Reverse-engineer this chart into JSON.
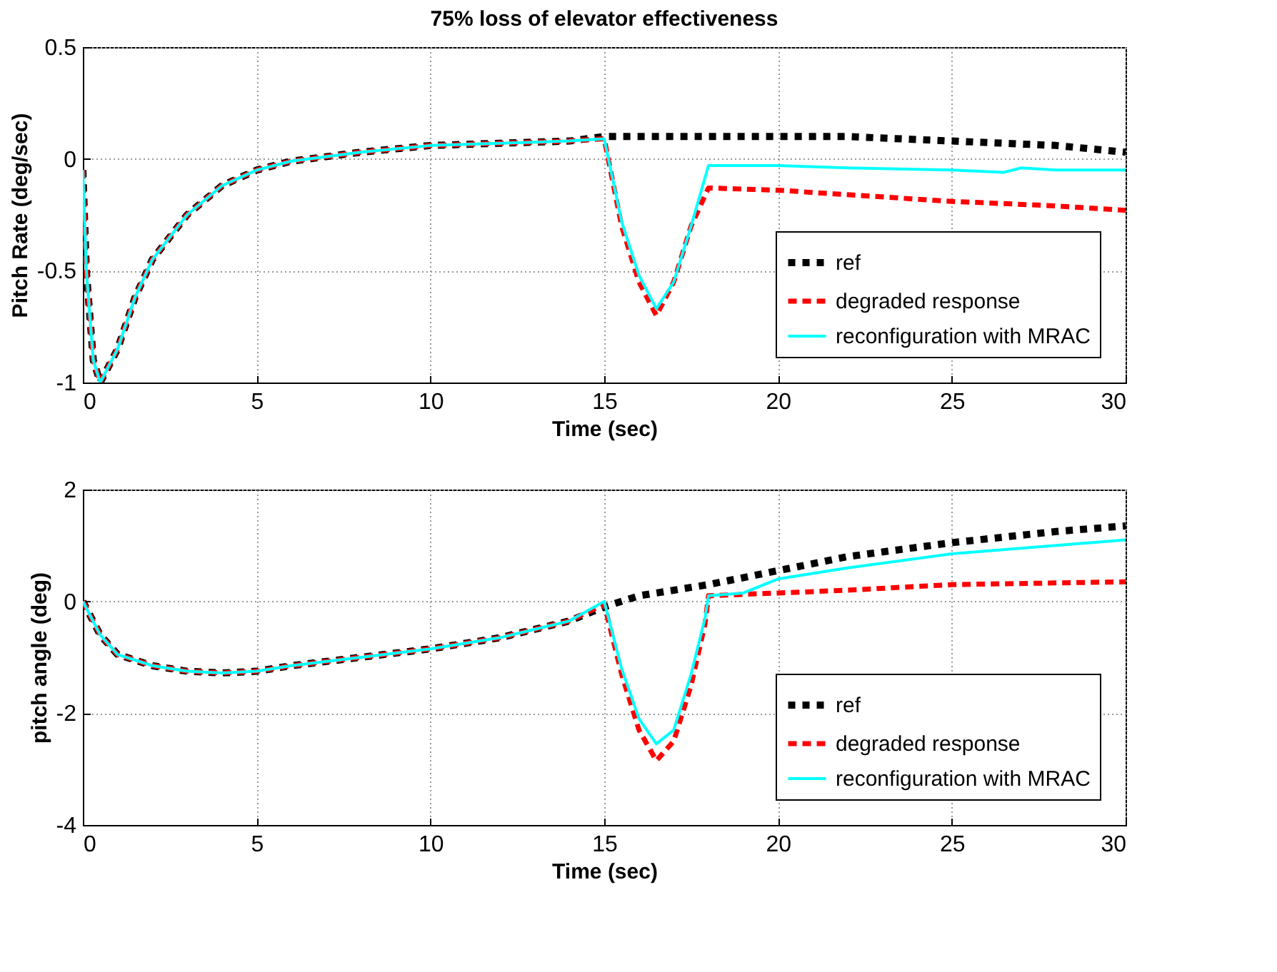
{
  "chart_data": [
    {
      "type": "line",
      "title": "75% loss of elevator effectiveness",
      "xlabel": "Time (sec)",
      "ylabel": "Pitch Rate (deg/sec)",
      "xlim": [
        0,
        30
      ],
      "xticks": [
        0,
        5,
        10,
        15,
        20,
        25,
        30
      ],
      "ylim": [
        -1,
        0.5
      ],
      "yticks": [
        -1,
        -0.5,
        0,
        0.5
      ],
      "grid": true,
      "legend": "bottom right",
      "marker": "none",
      "series": [
        {
          "name": "ref",
          "color": "#000000",
          "line_style": "dotted",
          "x": [
            0,
            0.1,
            0.3,
            0.5,
            1,
            1.5,
            2,
            3,
            4,
            5,
            6,
            8,
            10,
            12,
            14,
            15,
            18,
            22,
            25,
            28,
            30
          ],
          "values": [
            -0.05,
            -0.5,
            -0.9,
            -1.0,
            -0.85,
            -0.62,
            -0.45,
            -0.25,
            -0.12,
            -0.05,
            -0.01,
            0.03,
            0.06,
            0.07,
            0.08,
            0.1,
            0.1,
            0.1,
            0.08,
            0.06,
            0.03
          ]
        },
        {
          "name": "degraded response",
          "color": "#ff0000",
          "line_style": "dashed",
          "x": [
            0,
            0.1,
            0.3,
            0.5,
            1,
            1.5,
            2,
            3,
            4,
            5,
            6,
            8,
            10,
            12,
            14,
            15,
            15.5,
            16,
            16.5,
            17,
            17.5,
            18,
            20,
            22,
            25,
            28,
            30
          ],
          "values": [
            -0.05,
            -0.5,
            -0.9,
            -1.0,
            -0.85,
            -0.62,
            -0.45,
            -0.25,
            -0.12,
            -0.05,
            -0.01,
            0.03,
            0.06,
            0.07,
            0.08,
            0.09,
            -0.3,
            -0.55,
            -0.7,
            -0.55,
            -0.3,
            -0.13,
            -0.14,
            -0.16,
            -0.19,
            -0.21,
            -0.23
          ]
        },
        {
          "name": "reconfiguration with MRAC",
          "color": "#00ffff",
          "line_style": "solid",
          "x": [
            0,
            0.1,
            0.3,
            0.5,
            1,
            1.5,
            2,
            3,
            4,
            5,
            6,
            8,
            10,
            12,
            14,
            15,
            15.5,
            16,
            16.5,
            17,
            17.5,
            18,
            20,
            22,
            25,
            26.5,
            27,
            28,
            30
          ],
          "values": [
            -0.05,
            -0.5,
            -0.9,
            -1.0,
            -0.85,
            -0.62,
            -0.45,
            -0.25,
            -0.12,
            -0.05,
            -0.01,
            0.03,
            0.06,
            0.07,
            0.08,
            0.09,
            -0.28,
            -0.52,
            -0.67,
            -0.55,
            -0.3,
            -0.03,
            -0.03,
            -0.04,
            -0.05,
            -0.06,
            -0.04,
            -0.05,
            -0.05
          ]
        }
      ]
    },
    {
      "type": "line",
      "xlabel": "Time (sec)",
      "ylabel": "pitch angle (deg)",
      "xlim": [
        0,
        30
      ],
      "xticks": [
        0,
        5,
        10,
        15,
        20,
        25,
        30
      ],
      "ylim": [
        -4,
        2
      ],
      "yticks": [
        -4,
        -2,
        0,
        2
      ],
      "grid": true,
      "legend": "bottom right",
      "marker": "none",
      "series": [
        {
          "name": "ref",
          "color": "#000000",
          "line_style": "dotted",
          "x": [
            0,
            0.5,
            1,
            2,
            3,
            4,
            5,
            6,
            8,
            10,
            12,
            14,
            15,
            16,
            18,
            20,
            22,
            25,
            28,
            30
          ],
          "values": [
            0,
            -0.6,
            -0.95,
            -1.15,
            -1.25,
            -1.28,
            -1.25,
            -1.15,
            -1.0,
            -0.85,
            -0.65,
            -0.35,
            -0.1,
            0.1,
            0.3,
            0.55,
            0.8,
            1.05,
            1.25,
            1.35
          ]
        },
        {
          "name": "degraded response",
          "color": "#ff0000",
          "line_style": "dashed",
          "x": [
            0,
            0.5,
            1,
            2,
            3,
            4,
            5,
            6,
            8,
            10,
            12,
            14,
            15,
            15.5,
            16,
            16.5,
            17,
            17.5,
            17.9,
            18,
            20,
            22,
            25,
            30
          ],
          "values": [
            0,
            -0.6,
            -0.95,
            -1.15,
            -1.25,
            -1.28,
            -1.25,
            -1.15,
            -1.0,
            -0.85,
            -0.65,
            -0.35,
            -0.05,
            -1.3,
            -2.3,
            -2.85,
            -2.5,
            -1.5,
            -0.4,
            0.1,
            0.15,
            0.2,
            0.3,
            0.35
          ]
        },
        {
          "name": "reconfiguration with MRAC",
          "color": "#00ffff",
          "line_style": "solid",
          "x": [
            0,
            0.5,
            1,
            2,
            3,
            4,
            5,
            6,
            8,
            10,
            12,
            14,
            15,
            15.5,
            16,
            16.5,
            17,
            17.5,
            17.9,
            18,
            19,
            20,
            22,
            25,
            28,
            30
          ],
          "values": [
            0,
            -0.6,
            -0.95,
            -1.15,
            -1.25,
            -1.28,
            -1.25,
            -1.15,
            -1.0,
            -0.85,
            -0.65,
            -0.35,
            0,
            -1.2,
            -2.1,
            -2.55,
            -2.3,
            -1.3,
            -0.3,
            0.1,
            0.15,
            0.4,
            0.6,
            0.85,
            1.0,
            1.1
          ]
        }
      ]
    }
  ]
}
